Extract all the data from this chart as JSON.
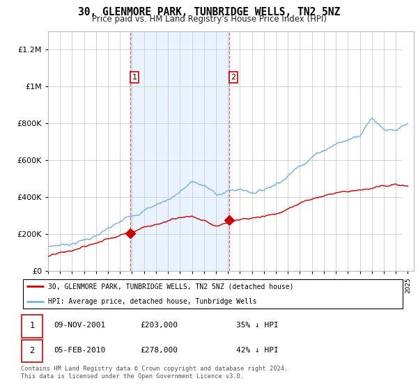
{
  "title": "30, GLENMORE PARK, TUNBRIDGE WELLS, TN2 5NZ",
  "subtitle": "Price paid vs. HM Land Registry's House Price Index (HPI)",
  "legend_line1": "30, GLENMORE PARK, TUNBRIDGE WELLS, TN2 5NZ (detached house)",
  "legend_line2": "HPI: Average price, detached house, Tunbridge Wells",
  "table_rows": [
    [
      "1",
      "09-NOV-2001",
      "£203,000",
      "35% ↓ HPI"
    ],
    [
      "2",
      "05-FEB-2010",
      "£278,000",
      "42% ↓ HPI"
    ]
  ],
  "footer": "Contains HM Land Registry data © Crown copyright and database right 2024.\nThis data is licensed under the Open Government Licence v3.0.",
  "sold_dates": [
    2001.86,
    2010.09
  ],
  "sold_prices": [
    203000,
    278000
  ],
  "sale_labels": [
    "1",
    "2"
  ],
  "red_color": "#cc0000",
  "blue_color": "#7bafd4",
  "shaded_region": [
    2001.86,
    2010.09
  ],
  "ylim": [
    0,
    1300000
  ],
  "xlim": [
    1995.0,
    2025.5
  ],
  "hatch_start": 2024.5
}
